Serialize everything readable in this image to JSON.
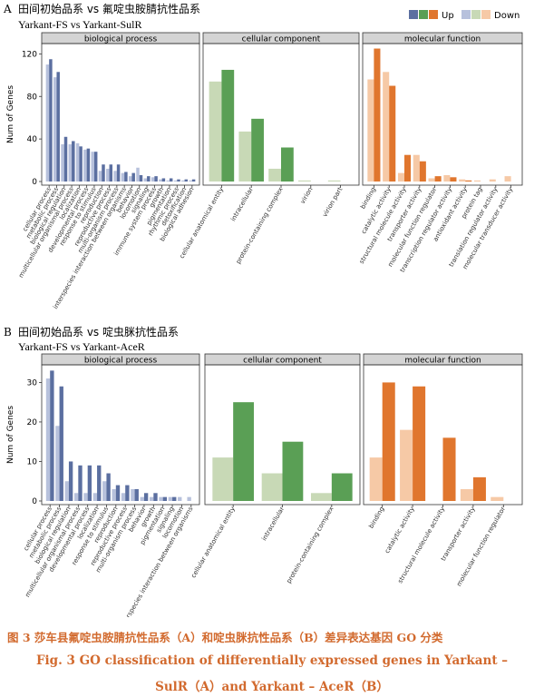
{
  "legend": {
    "up_label": "Up",
    "down_label": "Down",
    "up_colors": [
      "#5b6fa0",
      "#5a9f55",
      "#e0762e"
    ],
    "down_colors": [
      "#b7c1dc",
      "#c8d9b6",
      "#f6c9a6"
    ]
  },
  "facet_colors": {
    "biological process": {
      "up": "#5b6fa0",
      "down": "#b7c1dc"
    },
    "cellular component": {
      "up": "#5a9f55",
      "down": "#c8d9b6"
    },
    "molecular function": {
      "up": "#e0762e",
      "down": "#f6c9a6"
    }
  },
  "chart_data": [
    {
      "type": "bar",
      "panel_letter": "A",
      "title": "田间初始品系 vs 氟啶虫胺腈抗性品系",
      "subtitle": "Yarkant-FS vs Yarkant-SulR",
      "ylabel": "Num of Genes",
      "yticks": [
        0,
        40,
        80,
        120
      ],
      "ylim": [
        0,
        128
      ],
      "facets": [
        {
          "name": "biological process",
          "categories": [
            "cellular process",
            "metabolic process",
            "biological regulation",
            "multicellular organismal process",
            "localization",
            "developmental process",
            "response to stimulus",
            "reproduction",
            "reproductive process",
            "multi-organism process",
            "interspecies interaction between organisms",
            "behavior",
            "locomotion",
            "signaling",
            "immune system process",
            "growth",
            "pigmentation",
            "rhythmic process",
            "detoxification",
            "biological adhesion"
          ],
          "series": [
            {
              "name": "Down",
              "values": [
                110,
                98,
                35,
                35,
                36,
                30,
                28,
                10,
                12,
                10,
                8,
                5,
                13,
                3,
                4,
                2,
                1,
                1,
                1,
                1
              ]
            },
            {
              "name": "Up",
              "values": [
                115,
                103,
                42,
                38,
                33,
                31,
                28,
                16,
                16,
                16,
                9,
                8,
                6,
                5,
                5,
                3,
                3,
                2,
                2,
                2
              ]
            }
          ]
        },
        {
          "name": "cellular component",
          "categories": [
            "cellular anatomical entity",
            "intracellular",
            "protein-containing complex",
            "virion",
            "virion part"
          ],
          "series": [
            {
              "name": "Down",
              "values": [
                94,
                47,
                12,
                1,
                1
              ]
            },
            {
              "name": "Up",
              "values": [
                105,
                59,
                32,
                0,
                0
              ]
            }
          ]
        },
        {
          "name": "molecular function",
          "categories": [
            "binding",
            "catalytic activity",
            "structural molecule activity",
            "transporter activity",
            "molecular function regulator",
            "transcription regulator activity",
            "antioxidant activity",
            "protein tag",
            "translation regulator activity",
            "molecular transducer activity"
          ],
          "series": [
            {
              "name": "Down",
              "values": [
                96,
                103,
                8,
                25,
                3,
                6,
                2,
                1,
                2,
                5
              ]
            },
            {
              "name": "Up",
              "values": [
                125,
                90,
                25,
                19,
                5,
                4,
                1,
                0,
                0,
                0
              ]
            }
          ]
        }
      ]
    },
    {
      "type": "bar",
      "panel_letter": "B",
      "title": "田间初始品系 vs 啶虫脒抗性品系",
      "subtitle": "Yarkant-FS vs Yarkant-AceR",
      "ylabel": "Num of Genes",
      "yticks": [
        0,
        10,
        20,
        30
      ],
      "ylim": [
        0,
        34
      ],
      "facets": [
        {
          "name": "biological process",
          "categories": [
            "cellular process",
            "metabolic process",
            "biological regulation",
            "multicellular organismal process",
            "developmental process",
            "localization",
            "response to stimulus",
            "reproduction",
            "reproductive process",
            "multi-organism process",
            "behavior",
            "growth",
            "pigmentation",
            "signaling",
            "locomotion",
            "interspecies interaction between organisms"
          ],
          "series": [
            {
              "name": "Down",
              "values": [
                31,
                19,
                5,
                2,
                2,
                2,
                5,
                3,
                2,
                3,
                1,
                1,
                1,
                1,
                1,
                1
              ]
            },
            {
              "name": "Up",
              "values": [
                33,
                29,
                10,
                9,
                9,
                9,
                7,
                4,
                4,
                3,
                2,
                2,
                1,
                1,
                0,
                0
              ]
            }
          ]
        },
        {
          "name": "cellular component",
          "categories": [
            "cellular anatomical entity",
            "intracellular",
            "protein-containing complex"
          ],
          "series": [
            {
              "name": "Down",
              "values": [
                11,
                7,
                2
              ]
            },
            {
              "name": "Up",
              "values": [
                25,
                15,
                7
              ]
            }
          ]
        },
        {
          "name": "molecular function",
          "categories": [
            "binding",
            "catalytic activity",
            "structural molecule activity",
            "transporter activity",
            "molecular function regulator"
          ],
          "series": [
            {
              "name": "Down",
              "values": [
                11,
                18,
                0,
                3,
                1
              ]
            },
            {
              "name": "Up",
              "values": [
                30,
                29,
                16,
                6,
                0
              ]
            }
          ]
        }
      ]
    }
  ],
  "caption": {
    "cn": "图 3   莎车县氟啶虫胺腈抗性品系（A）和啶虫脒抗性品系（B）差异表达基因 GO 分类",
    "en_line1": "Fig. 3    GO classification of differentially expressed genes in Yarkant –",
    "en_line2": "SulR（A）and Yarkant – AceR（B）"
  }
}
